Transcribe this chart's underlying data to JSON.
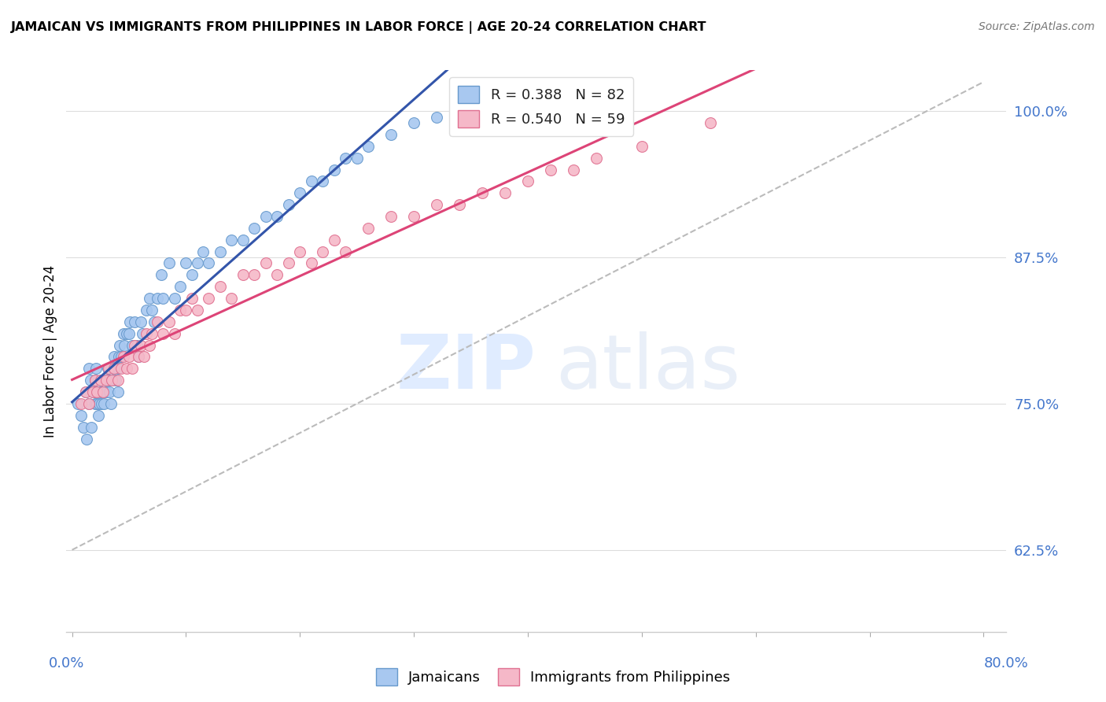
{
  "title": "JAMAICAN VS IMMIGRANTS FROM PHILIPPINES IN LABOR FORCE | AGE 20-24 CORRELATION CHART",
  "source": "Source: ZipAtlas.com",
  "ylabel": "In Labor Force | Age 20-24",
  "ytick_labels": [
    "100.0%",
    "87.5%",
    "75.0%",
    "62.5%"
  ],
  "ytick_values": [
    1.0,
    0.875,
    0.75,
    0.625
  ],
  "xlim": [
    -0.005,
    0.82
  ],
  "ylim": [
    0.555,
    1.035
  ],
  "color_blue": "#A8C8F0",
  "color_pink": "#F5B8C8",
  "edge_blue": "#6699CC",
  "edge_pink": "#E07090",
  "line_blue": "#3355AA",
  "line_pink": "#DD4477",
  "line_dashed_color": "#BBBBBB",
  "jamaicans_x": [
    0.005,
    0.008,
    0.01,
    0.012,
    0.013,
    0.015,
    0.015,
    0.016,
    0.017,
    0.018,
    0.02,
    0.02,
    0.02,
    0.021,
    0.022,
    0.022,
    0.023,
    0.024,
    0.025,
    0.025,
    0.026,
    0.027,
    0.028,
    0.03,
    0.03,
    0.031,
    0.032,
    0.033,
    0.034,
    0.035,
    0.036,
    0.037,
    0.038,
    0.04,
    0.04,
    0.041,
    0.042,
    0.043,
    0.045,
    0.046,
    0.048,
    0.05,
    0.051,
    0.053,
    0.055,
    0.057,
    0.058,
    0.06,
    0.062,
    0.065,
    0.068,
    0.07,
    0.072,
    0.075,
    0.078,
    0.08,
    0.085,
    0.09,
    0.095,
    0.1,
    0.105,
    0.11,
    0.115,
    0.12,
    0.13,
    0.14,
    0.15,
    0.16,
    0.17,
    0.18,
    0.19,
    0.2,
    0.21,
    0.22,
    0.23,
    0.24,
    0.25,
    0.26,
    0.28,
    0.3,
    0.32,
    0.35
  ],
  "jamaicans_y": [
    0.75,
    0.74,
    0.73,
    0.76,
    0.72,
    0.78,
    0.75,
    0.77,
    0.73,
    0.76,
    0.75,
    0.76,
    0.77,
    0.78,
    0.75,
    0.76,
    0.74,
    0.75,
    0.76,
    0.77,
    0.75,
    0.76,
    0.75,
    0.76,
    0.77,
    0.78,
    0.77,
    0.76,
    0.75,
    0.77,
    0.78,
    0.79,
    0.77,
    0.78,
    0.76,
    0.79,
    0.8,
    0.79,
    0.81,
    0.8,
    0.81,
    0.81,
    0.82,
    0.8,
    0.82,
    0.8,
    0.79,
    0.82,
    0.81,
    0.83,
    0.84,
    0.83,
    0.82,
    0.84,
    0.86,
    0.84,
    0.87,
    0.84,
    0.85,
    0.87,
    0.86,
    0.87,
    0.88,
    0.87,
    0.88,
    0.89,
    0.89,
    0.9,
    0.91,
    0.91,
    0.92,
    0.93,
    0.94,
    0.94,
    0.95,
    0.96,
    0.96,
    0.97,
    0.98,
    0.99,
    0.995,
    1.0
  ],
  "philippines_x": [
    0.008,
    0.012,
    0.015,
    0.018,
    0.02,
    0.022,
    0.025,
    0.027,
    0.03,
    0.032,
    0.035,
    0.037,
    0.04,
    0.043,
    0.045,
    0.048,
    0.05,
    0.053,
    0.055,
    0.058,
    0.06,
    0.063,
    0.065,
    0.068,
    0.07,
    0.075,
    0.08,
    0.085,
    0.09,
    0.095,
    0.1,
    0.105,
    0.11,
    0.12,
    0.13,
    0.14,
    0.15,
    0.16,
    0.17,
    0.18,
    0.19,
    0.2,
    0.21,
    0.22,
    0.23,
    0.24,
    0.26,
    0.28,
    0.3,
    0.32,
    0.34,
    0.36,
    0.38,
    0.4,
    0.42,
    0.44,
    0.46,
    0.5,
    0.56
  ],
  "philippines_y": [
    0.75,
    0.76,
    0.75,
    0.76,
    0.77,
    0.76,
    0.77,
    0.76,
    0.77,
    0.78,
    0.77,
    0.78,
    0.77,
    0.78,
    0.79,
    0.78,
    0.79,
    0.78,
    0.8,
    0.79,
    0.8,
    0.79,
    0.81,
    0.8,
    0.81,
    0.82,
    0.81,
    0.82,
    0.81,
    0.83,
    0.83,
    0.84,
    0.83,
    0.84,
    0.85,
    0.84,
    0.86,
    0.86,
    0.87,
    0.86,
    0.87,
    0.88,
    0.87,
    0.88,
    0.89,
    0.88,
    0.9,
    0.91,
    0.91,
    0.92,
    0.92,
    0.93,
    0.93,
    0.94,
    0.95,
    0.95,
    0.96,
    0.97,
    0.99
  ]
}
